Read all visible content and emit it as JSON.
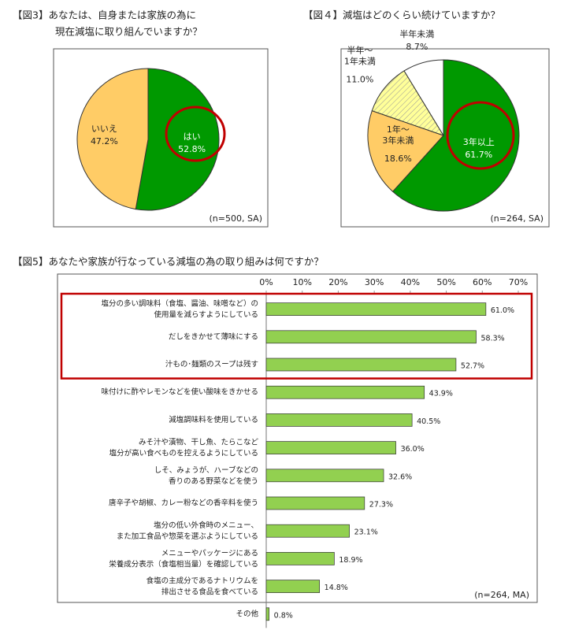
{
  "chart_data": [
    {
      "type": "pie",
      "title": [
        "【図3】あなたは、自身または家族の為に",
        "現在減塩に取り組んでいますか？"
      ],
      "categories": [
        "はい",
        "いいえ"
      ],
      "values": [
        52.8,
        47.2
      ],
      "value_labels": [
        "52.8%",
        "47.2%"
      ],
      "colors": [
        "#009900",
        "#ffcc66"
      ],
      "hatch": [
        false,
        false
      ],
      "note": "(n=500, SA)"
    },
    {
      "type": "pie",
      "title": [
        "【図４】減塩はどのくらい続けていますか？"
      ],
      "categories": [
        "3年以上",
        "1年～\n3年未満",
        "半年～\n1年未満",
        "半年未満"
      ],
      "values": [
        61.7,
        18.6,
        11.0,
        8.7
      ],
      "value_labels": [
        "61.7%",
        "18.6%",
        "11.0%",
        "8.7%"
      ],
      "colors": [
        "#009900",
        "#ffcc66",
        "#ffff99",
        "#ffffff"
      ],
      "hatch": [
        false,
        false,
        true,
        false
      ],
      "note": "(n=264, SA)"
    },
    {
      "type": "barh",
      "title": "【図5】あなたや家族が行なっている減塩の為の取り組みは何ですか？",
      "categories": [
        "塩分の多い調味料（食塩、醤油、味噌など）の\n使用量を減らすようにしている",
        "だしをきかせて薄味にする",
        "汁もの･麺類のスープは残す",
        "味付けに酢やレモンなどを使い酸味をきかせる",
        "減塩調味料を使用している",
        "みそ汁や漬物、干し魚、たらこなど\n塩分が高い食べものを控えるようにしている",
        "しそ、みょうが、ハーブなどの\n香りのある野菜などを使う",
        "唐辛子や胡椒、カレー粉などの香辛料を使う",
        "塩分の低い外食時のメニュー、\nまた加工食品や惣菜を選ぶようにしている",
        "メニューやパッケージにある\n栄養成分表示（食塩相当量）を確認している",
        "食塩の主成分であるナトリウムを\n排出させる食品を食べている",
        "その他"
      ],
      "values": [
        61.0,
        58.3,
        52.7,
        43.9,
        40.5,
        36.0,
        32.6,
        27.3,
        23.1,
        18.9,
        14.8,
        0.8
      ],
      "value_labels": [
        "61.0%",
        "58.3%",
        "52.7%",
        "43.9%",
        "40.5%",
        "36.0%",
        "32.6%",
        "27.3%",
        "23.1%",
        "18.9%",
        "14.8%",
        "0.8%"
      ],
      "color": "#92d050",
      "xlim": [
        0,
        70
      ],
      "xticks": [
        {
          "value": 0,
          "label": "0%"
        },
        {
          "value": 10,
          "label": "10%"
        },
        {
          "value": 20,
          "label": "20%"
        },
        {
          "value": 30,
          "label": "30%"
        },
        {
          "value": 40,
          "label": "40%"
        },
        {
          "value": 50,
          "label": "50%"
        },
        {
          "value": 60,
          "label": "60%"
        },
        {
          "value": 70,
          "label": "70%"
        }
      ],
      "note": "(n=264, MA)"
    }
  ]
}
